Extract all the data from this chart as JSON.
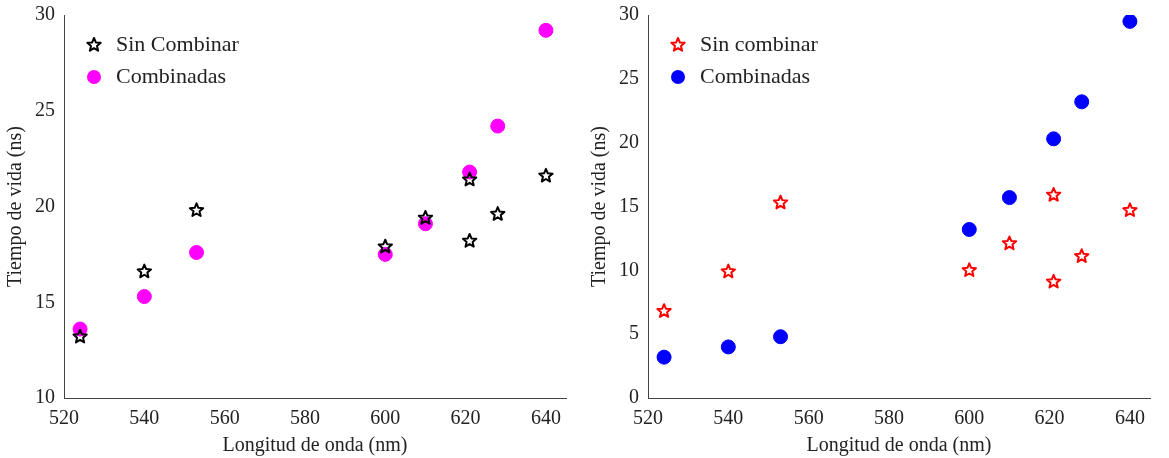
{
  "chart_data": [
    {
      "type": "scatter",
      "xlabel": "Longitud de onda (nm)",
      "ylabel": "Tiempo de vida (ns)",
      "xlim": [
        520,
        645
      ],
      "xticks": [
        520,
        540,
        560,
        580,
        600,
        620,
        640
      ],
      "ylim": [
        10,
        30
      ],
      "yticks": [
        10,
        15,
        20,
        25,
        30
      ],
      "grid": false,
      "legend": "top left",
      "series": [
        {
          "name": "Sin Combinar",
          "color": "#000000",
          "marker": "star",
          "x": [
            524,
            540,
            553,
            600,
            610,
            621,
            621,
            628,
            640
          ],
          "values": [
            13.2,
            16.6,
            19.8,
            17.9,
            19.4,
            21.4,
            18.2,
            19.6,
            21.6
          ]
        },
        {
          "name": "Combinadas",
          "color": "#ff00ff",
          "marker": "circle",
          "x": [
            524,
            540,
            553,
            600,
            610,
            621,
            628,
            640
          ],
          "values": [
            13.6,
            15.3,
            17.6,
            17.5,
            19.1,
            21.8,
            24.2,
            29.2
          ]
        }
      ]
    },
    {
      "type": "scatter",
      "xlabel": "Longitud de onda (nm)",
      "ylabel": "Tiempo de vida (ns)",
      "xlim": [
        520,
        645
      ],
      "xticks": [
        520,
        540,
        560,
        580,
        600,
        620,
        640
      ],
      "ylim": [
        0,
        30
      ],
      "yticks": [
        0,
        5,
        10,
        15,
        20,
        25,
        30
      ],
      "grid": false,
      "legend": "top left",
      "series": [
        {
          "name": "Sin combinar",
          "color": "#ff0000",
          "marker": "star",
          "x": [
            524,
            540,
            553,
            600,
            610,
            621,
            621,
            628,
            640
          ],
          "values": [
            6.8,
            9.9,
            15.3,
            10.0,
            12.1,
            15.9,
            9.1,
            11.1,
            14.7
          ]
        },
        {
          "name": "Combinadas",
          "color": "#0000ff",
          "marker": "circle",
          "x": [
            524,
            540,
            553,
            600,
            610,
            621,
            628,
            640
          ],
          "values": [
            3.2,
            4.0,
            4.8,
            13.2,
            15.7,
            20.3,
            23.2,
            29.5
          ]
        }
      ]
    }
  ]
}
